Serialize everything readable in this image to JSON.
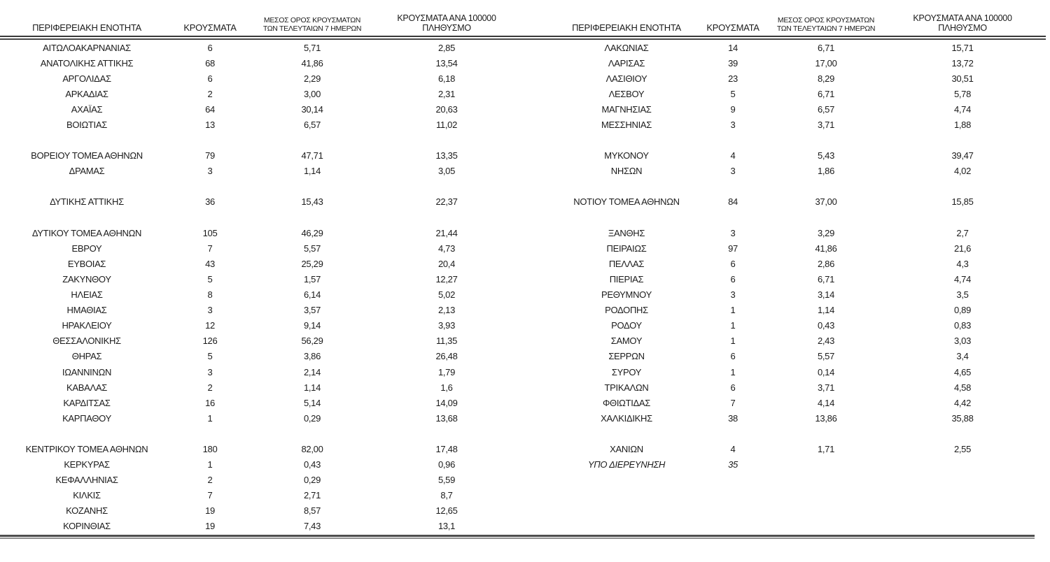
{
  "table": {
    "header": {
      "region": "ΠΕΡΙΦΕΡΕΙΑΚΗ ΕΝΟΤΗΤΑ",
      "cases": "ΚΡΟΥΣΜΑΤΑ",
      "avg7_line1": "ΜΕΣΟΣ ΟΡΟΣ ΚΡΟΥΣΜΑΤΩΝ",
      "avg7_line2": "ΤΩΝ ΤΕΛΕΥΤΑΙΩΝ 7 ΗΜΕΡΩΝ",
      "per100k_line1": "ΚΡΟΥΣΜΑΤΑ ΑΝΑ 100000",
      "per100k_line2": "ΠΛΗΘΥΣΜΟ"
    },
    "rows": [
      {
        "left": {
          "name": "ΑΙΤΩΛΟΑΚΑΡΝΑΝΙΑΣ",
          "cases": "6",
          "avg7": "5,71",
          "per100k": "2,85"
        },
        "right": {
          "name": "ΛΑΚΩΝΙΑΣ",
          "cases": "14",
          "avg7": "6,71",
          "per100k": "15,71"
        }
      },
      {
        "left": {
          "name": "ΑΝΑΤΟΛΙΚΗΣ ΑΤΤΙΚΗΣ",
          "cases": "68",
          "avg7": "41,86",
          "per100k": "13,54"
        },
        "right": {
          "name": "ΛΑΡΙΣΑΣ",
          "cases": "39",
          "avg7": "17,00",
          "per100k": "13,72"
        }
      },
      {
        "left": {
          "name": "ΑΡΓΟΛΙΔΑΣ",
          "cases": "6",
          "avg7": "2,29",
          "per100k": "6,18"
        },
        "right": {
          "name": "ΛΑΣΙΘΙΟΥ",
          "cases": "23",
          "avg7": "8,29",
          "per100k": "30,51"
        }
      },
      {
        "left": {
          "name": "ΑΡΚΑΔΙΑΣ",
          "cases": "2",
          "avg7": "3,00",
          "per100k": "2,31"
        },
        "right": {
          "name": "ΛΕΣΒΟΥ",
          "cases": "5",
          "avg7": "6,71",
          "per100k": "5,78"
        }
      },
      {
        "left": {
          "name": "ΑΧΑΪΑΣ",
          "cases": "64",
          "avg7": "30,14",
          "per100k": "20,63"
        },
        "right": {
          "name": "ΜΑΓΝΗΣΙΑΣ",
          "cases": "9",
          "avg7": "6,57",
          "per100k": "4,74"
        }
      },
      {
        "left": {
          "name": "ΒΟΙΩΤΙΑΣ",
          "cases": "13",
          "avg7": "6,57",
          "per100k": "11,02"
        },
        "right": {
          "name": "ΜΕΣΣΗΝΙΑΣ",
          "cases": "3",
          "avg7": "3,71",
          "per100k": "1,88"
        }
      },
      {
        "spacer": true
      },
      {
        "left": {
          "name": "ΒΟΡΕΙΟΥ ΤΟΜΕΑ ΑΘΗΝΩΝ",
          "cases": "79",
          "avg7": "47,71",
          "per100k": "13,35"
        },
        "right": {
          "name": "ΜΥΚΟΝΟΥ",
          "cases": "4",
          "avg7": "5,43",
          "per100k": "39,47"
        }
      },
      {
        "left": {
          "name": "ΔΡΑΜΑΣ",
          "cases": "3",
          "avg7": "1,14",
          "per100k": "3,05"
        },
        "right": {
          "name": "ΝΗΣΩΝ",
          "cases": "3",
          "avg7": "1,86",
          "per100k": "4,02"
        }
      },
      {
        "spacer": true
      },
      {
        "left": {
          "name": "ΔΥΤΙΚΗΣ ΑΤΤΙΚΗΣ",
          "cases": "36",
          "avg7": "15,43",
          "per100k": "22,37"
        },
        "right": {
          "name": "ΝΟΤΙΟΥ ΤΟΜΕΑ ΑΘΗΝΩΝ",
          "cases": "84",
          "avg7": "37,00",
          "per100k": "15,85"
        }
      },
      {
        "spacer": true
      },
      {
        "left": {
          "name": "ΔΥΤΙΚΟΥ ΤΟΜΕΑ ΑΘΗΝΩΝ",
          "cases": "105",
          "avg7": "46,29",
          "per100k": "21,44"
        },
        "right": {
          "name": "ΞΑΝΘΗΣ",
          "cases": "3",
          "avg7": "3,29",
          "per100k": "2,7"
        }
      },
      {
        "left": {
          "name": "ΕΒΡΟΥ",
          "cases": "7",
          "avg7": "5,57",
          "per100k": "4,73"
        },
        "right": {
          "name": "ΠΕΙΡΑΙΩΣ",
          "cases": "97",
          "avg7": "41,86",
          "per100k": "21,6"
        }
      },
      {
        "left": {
          "name": "ΕΥΒΟΙΑΣ",
          "cases": "43",
          "avg7": "25,29",
          "per100k": "20,4"
        },
        "right": {
          "name": "ΠΕΛΛΑΣ",
          "cases": "6",
          "avg7": "2,86",
          "per100k": "4,3"
        }
      },
      {
        "left": {
          "name": "ΖΑΚΥΝΘΟΥ",
          "cases": "5",
          "avg7": "1,57",
          "per100k": "12,27"
        },
        "right": {
          "name": "ΠΙΕΡΙΑΣ",
          "cases": "6",
          "avg7": "6,71",
          "per100k": "4,74"
        }
      },
      {
        "left": {
          "name": "ΗΛΕΙΑΣ",
          "cases": "8",
          "avg7": "6,14",
          "per100k": "5,02"
        },
        "right": {
          "name": "ΡΕΘΥΜΝΟΥ",
          "cases": "3",
          "avg7": "3,14",
          "per100k": "3,5"
        }
      },
      {
        "left": {
          "name": "ΗΜΑΘΙΑΣ",
          "cases": "3",
          "avg7": "3,57",
          "per100k": "2,13"
        },
        "right": {
          "name": "ΡΟΔΟΠΗΣ",
          "cases": "1",
          "avg7": "1,14",
          "per100k": "0,89"
        }
      },
      {
        "left": {
          "name": "ΗΡΑΚΛΕΙΟΥ",
          "cases": "12",
          "avg7": "9,14",
          "per100k": "3,93"
        },
        "right": {
          "name": "ΡΟΔΟΥ",
          "cases": "1",
          "avg7": "0,43",
          "per100k": "0,83"
        }
      },
      {
        "left": {
          "name": "ΘΕΣΣΑΛΟΝΙΚΗΣ",
          "cases": "126",
          "avg7": "56,29",
          "per100k": "11,35"
        },
        "right": {
          "name": "ΣΑΜΟΥ",
          "cases": "1",
          "avg7": "2,43",
          "per100k": "3,03"
        }
      },
      {
        "left": {
          "name": "ΘΗΡΑΣ",
          "cases": "5",
          "avg7": "3,86",
          "per100k": "26,48"
        },
        "right": {
          "name": "ΣΕΡΡΩΝ",
          "cases": "6",
          "avg7": "5,57",
          "per100k": "3,4"
        }
      },
      {
        "left": {
          "name": "ΙΩΑΝΝΙΝΩΝ",
          "cases": "3",
          "avg7": "2,14",
          "per100k": "1,79"
        },
        "right": {
          "name": "ΣΥΡΟΥ",
          "cases": "1",
          "avg7": "0,14",
          "per100k": "4,65"
        }
      },
      {
        "left": {
          "name": "ΚΑΒΑΛΑΣ",
          "cases": "2",
          "avg7": "1,14",
          "per100k": "1,6"
        },
        "right": {
          "name": "ΤΡΙΚΑΛΩΝ",
          "cases": "6",
          "avg7": "3,71",
          "per100k": "4,58"
        }
      },
      {
        "left": {
          "name": "ΚΑΡΔΙΤΣΑΣ",
          "cases": "16",
          "avg7": "5,14",
          "per100k": "14,09"
        },
        "right": {
          "name": "ΦΘΙΩΤΙΔΑΣ",
          "cases": "7",
          "avg7": "4,14",
          "per100k": "4,42"
        }
      },
      {
        "left": {
          "name": "ΚΑΡΠΑΘΟΥ",
          "cases": "1",
          "avg7": "0,29",
          "per100k": "13,68"
        },
        "right": {
          "name": "ΧΑΛΚΙΔΙΚΗΣ",
          "cases": "38",
          "avg7": "13,86",
          "per100k": "35,88"
        }
      },
      {
        "spacer": true
      },
      {
        "left": {
          "name": "ΚΕΝΤΡΙΚΟΥ ΤΟΜΕΑ ΑΘΗΝΩΝ",
          "cases": "180",
          "avg7": "82,00",
          "per100k": "17,48"
        },
        "right": {
          "name": "ΧΑΝΙΩΝ",
          "cases": "4",
          "avg7": "1,71",
          "per100k": "2,55"
        }
      },
      {
        "left": {
          "name": "ΚΕΡΚΥΡΑΣ",
          "cases": "1",
          "avg7": "0,43",
          "per100k": "0,96"
        },
        "right": {
          "name": "ΥΠΟ ΔΙΕΡΕΥΝΗΣΗ",
          "cases": "35",
          "avg7": "",
          "per100k": "",
          "italic": true
        }
      },
      {
        "left": {
          "name": "ΚΕΦΑΛΛΗΝΙΑΣ",
          "cases": "2",
          "avg7": "0,29",
          "per100k": "5,59"
        },
        "right": null
      },
      {
        "left": {
          "name": "ΚΙΛΚΙΣ",
          "cases": "7",
          "avg7": "2,71",
          "per100k": "8,7"
        },
        "right": null
      },
      {
        "left": {
          "name": "ΚΟΖΑΝΗΣ",
          "cases": "19",
          "avg7": "8,57",
          "per100k": "12,65"
        },
        "right": null
      },
      {
        "left": {
          "name": "ΚΟΡΙΝΘΙΑΣ",
          "cases": "19",
          "avg7": "7,43",
          "per100k": "13,1"
        },
        "right": null
      }
    ]
  }
}
